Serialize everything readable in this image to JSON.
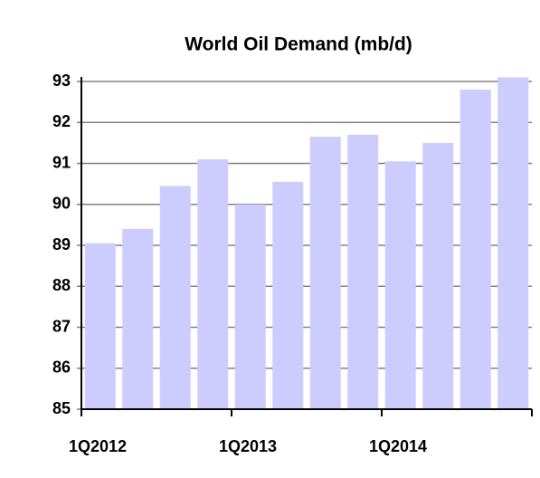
{
  "chart_data": {
    "type": "bar",
    "title": "World Oil Demand (mb/d)",
    "categories": [
      "1Q2012",
      null,
      null,
      null,
      "1Q2013",
      null,
      null,
      null,
      "1Q2014",
      null,
      null,
      null
    ],
    "values": [
      89.05,
      89.4,
      90.45,
      91.1,
      90.0,
      90.55,
      91.65,
      91.7,
      91.05,
      91.5,
      92.8,
      93.1
    ],
    "color": "#ccccff",
    "ylim": [
      85,
      93
    ],
    "yticks": [
      85,
      86,
      87,
      88,
      89,
      90,
      91,
      92,
      93
    ],
    "grid": true
  }
}
